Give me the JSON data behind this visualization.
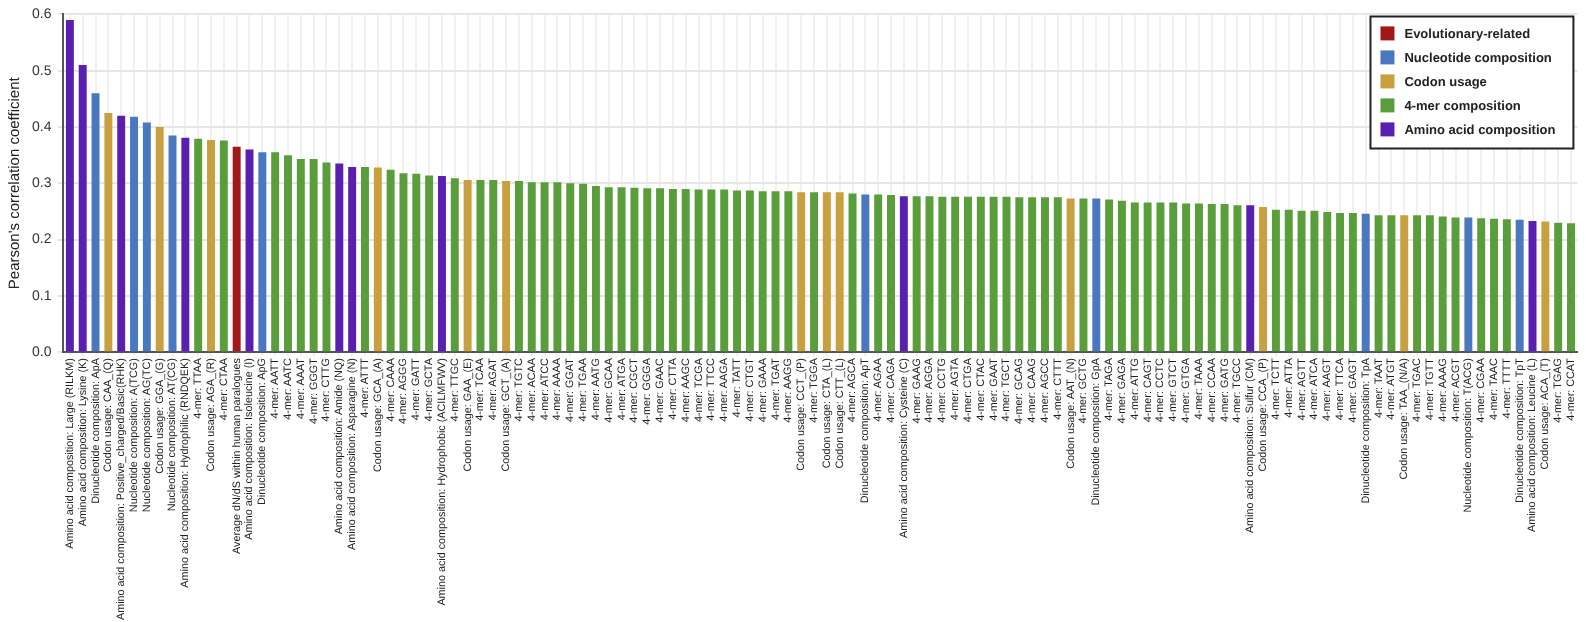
{
  "chart_data": {
    "type": "bar",
    "ylabel": "Pearson's correlation coefficient",
    "grid": true,
    "legend": "top right",
    "ylim": [
      0,
      0.6
    ],
    "yticks": [
      {
        "value": 0,
        "label": "0.0"
      },
      {
        "value": 0.1,
        "label": "0.1"
      },
      {
        "value": 0.2,
        "label": "0.2"
      },
      {
        "value": 0.3,
        "label": "0.3"
      },
      {
        "value": 0.4,
        "label": "0.4"
      },
      {
        "value": 0.5,
        "label": "0.5"
      },
      {
        "value": 0.6,
        "label": "0.6"
      }
    ],
    "categories": [
      "Amino acid composition: Large (RILKM)",
      "Amino acid composition: Lysine (K)",
      "Dinucleotide composition: ApA",
      "Codon usage: CAA_(Q)",
      "Amino acid composition: Positive_charged/Basic(RHK)",
      "Nucleotide composition: A(TCG)",
      "Nucleotide composition: AG(TC)",
      "Codon usage: GGA_(G)",
      "Nucleotide composition: AT(CG)",
      "Amino acid composition: Hydrophilic (RNDQEK)",
      "4-mer: TTAA",
      "Codon usage: AGA_(R)",
      "4-mer: CTAA",
      "Average dN/dS within human paralogues",
      "Amino acid composition: Isoleucine (I)",
      "Dinucleotide composition: ApG",
      "4-mer: AATT",
      "4-mer: AATC",
      "4-mer: AAAT",
      "4-mer: GGGT",
      "4-mer: CTTG",
      "Amino acid composition: Amide (NQ)",
      "Amino acid composition: Asparagine (N)",
      "4-mer: ATTT",
      "Codon usage: GCA_(A)",
      "4-mer: CAAA",
      "4-mer: AGGG",
      "4-mer: GATT",
      "4-mer: GCTA",
      "Amino acid composition: Hydrophobic (ACILMFWV)",
      "4-mer: TTGC",
      "Codon usage: GAA_(E)",
      "4-mer: TCAA",
      "4-mer: AGAT",
      "Codon usage: GCT_(A)",
      "4-mer: TGTC",
      "4-mer: ACAA",
      "4-mer: ATCC",
      "4-mer: AAAA",
      "4-mer: GGAT",
      "4-mer: TGAA",
      "4-mer: AATG",
      "4-mer: GCAA",
      "4-mer: ATGA",
      "4-mer: CGCT",
      "4-mer: GGGA",
      "4-mer: GAAC",
      "4-mer: CTTA",
      "4-mer: AAGC",
      "4-mer: TCGA",
      "4-mer: TTCC",
      "4-mer: AAGA",
      "4-mer: TATT",
      "4-mer: CTGT",
      "4-mer: GAAA",
      "4-mer: TGAT",
      "4-mer: AAGG",
      "Codon usage: CCT_(P)",
      "4-mer: TGGA",
      "Codon usage: CTA_(L)",
      "Codon usage: CTT_(L)",
      "4-mer: AGCA",
      "Dinucleotide composition: ApT",
      "4-mer: AGAA",
      "4-mer: CAGA",
      "Amino acid composition: Cysteine (C)",
      "4-mer: GAAG",
      "4-mer: AGGA",
      "4-mer: CCTG",
      "4-mer: AGTA",
      "4-mer: CTGA",
      "4-mer: CTAC",
      "4-mer: GAAT",
      "4-mer: TGCT",
      "4-mer: GCAG",
      "4-mer: CAAG",
      "4-mer: AGCC",
      "4-mer: CTTT",
      "Codon usage: AAT_(N)",
      "4-mer: GCTG",
      "Dinucleotide composition: GpA",
      "4-mer: TAGA",
      "4-mer: GAGA",
      "4-mer: ATTG",
      "4-mer: CAGT",
      "4-mer: CCTC",
      "4-mer: GTCT",
      "4-mer: GTGA",
      "4-mer: TAAA",
      "4-mer: CCAA",
      "4-mer: GATG",
      "4-mer: TGCC",
      "Amino acid composition: Sulfur (CM)",
      "Codon usage: CCA_(P)",
      "4-mer: TCTT",
      "4-mer: ATTA",
      "4-mer: AGTT",
      "4-mer: ATCA",
      "4-mer: AAGT",
      "4-mer: TTCA",
      "4-mer: GAGT",
      "Dinucleotide composition: TpA",
      "4-mer: TAAT",
      "4-mer: ATGT",
      "Codon usage: TAA_(N/A)",
      "4-mer: TGAC",
      "4-mer: TGTT",
      "4-mer: AAAG",
      "4-mer: ACGT",
      "Nucleotide composition: T(ACG)",
      "4-mer: CGAA",
      "4-mer: TAAC",
      "4-mer: TTTT",
      "Dinucleotide composition: TpT",
      "Amino acid composition: Leucine (L)",
      "Codon usage: ACA_(T)",
      "4-mer: TGAG",
      "4-mer: CCAT"
    ],
    "series": [
      {
        "name": "Evolutionary-related",
        "color": "#a01818",
        "values": [
          null,
          null,
          null,
          null,
          null,
          null,
          null,
          null,
          null,
          null,
          null,
          null,
          null,
          0.365,
          null,
          null,
          null,
          null,
          null,
          null,
          null,
          null,
          null,
          null,
          null,
          null,
          null,
          null,
          null,
          null,
          null,
          null,
          null,
          null,
          null,
          null,
          null,
          null,
          null,
          null,
          null,
          null,
          null,
          null,
          null,
          null,
          null,
          null,
          null,
          null,
          null,
          null,
          null,
          null,
          null,
          null,
          null,
          null,
          null,
          null,
          null,
          null,
          null,
          null,
          null,
          null,
          null,
          null,
          null,
          null,
          null,
          null,
          null,
          null,
          null,
          null,
          null,
          null,
          null,
          null,
          null,
          null,
          null,
          null,
          null,
          null,
          null,
          null,
          null,
          null,
          null,
          null,
          null,
          null,
          null,
          null,
          null,
          null,
          null,
          null,
          null,
          null,
          null,
          null,
          null,
          null,
          null,
          null,
          null,
          null,
          null,
          null,
          null,
          null,
          null,
          null,
          null,
          null
        ]
      },
      {
        "name": "Nucleotide composition",
        "color": "#4a78c0",
        "values": [
          null,
          null,
          0.46,
          null,
          null,
          0.418,
          0.408,
          null,
          0.385,
          null,
          null,
          null,
          null,
          null,
          null,
          0.355,
          null,
          null,
          null,
          null,
          null,
          null,
          null,
          null,
          null,
          null,
          null,
          null,
          null,
          null,
          null,
          null,
          null,
          null,
          null,
          null,
          null,
          null,
          null,
          null,
          null,
          null,
          null,
          null,
          null,
          null,
          null,
          null,
          null,
          null,
          null,
          null,
          null,
          null,
          null,
          null,
          null,
          null,
          null,
          null,
          null,
          null,
          0.28,
          null,
          null,
          null,
          null,
          null,
          null,
          null,
          null,
          null,
          null,
          null,
          null,
          null,
          null,
          null,
          null,
          null,
          0.273,
          null,
          null,
          null,
          null,
          null,
          null,
          null,
          null,
          null,
          null,
          null,
          null,
          null,
          null,
          null,
          null,
          null,
          null,
          null,
          null,
          0.246,
          null,
          null,
          null,
          null,
          null,
          null,
          null,
          0.239,
          null,
          null,
          null,
          0.235,
          null,
          null,
          null,
          null
        ]
      },
      {
        "name": "Codon usage",
        "color": "#c9a040",
        "values": [
          null,
          null,
          null,
          0.425,
          null,
          null,
          null,
          0.4,
          null,
          null,
          null,
          0.377,
          null,
          null,
          null,
          null,
          null,
          null,
          null,
          null,
          null,
          null,
          null,
          null,
          0.328,
          null,
          null,
          null,
          null,
          null,
          null,
          0.306,
          null,
          null,
          0.304,
          null,
          null,
          null,
          null,
          null,
          null,
          null,
          null,
          null,
          null,
          null,
          null,
          null,
          null,
          null,
          null,
          null,
          null,
          null,
          null,
          null,
          null,
          0.284,
          null,
          0.284,
          0.284,
          null,
          null,
          null,
          null,
          null,
          null,
          null,
          null,
          null,
          null,
          null,
          null,
          null,
          null,
          null,
          null,
          null,
          0.273,
          null,
          null,
          null,
          null,
          null,
          null,
          null,
          null,
          null,
          null,
          null,
          null,
          null,
          null,
          0.258,
          null,
          null,
          null,
          null,
          null,
          null,
          null,
          null,
          null,
          null,
          0.243,
          null,
          null,
          null,
          null,
          null,
          null,
          null,
          null,
          null,
          null,
          0.232,
          null,
          null
        ]
      },
      {
        "name": "4-mer composition",
        "color": "#5a9e3c",
        "values": [
          null,
          null,
          null,
          null,
          null,
          null,
          null,
          null,
          null,
          null,
          0.379,
          null,
          0.376,
          null,
          null,
          null,
          0.355,
          0.35,
          0.343,
          0.343,
          0.337,
          null,
          null,
          0.329,
          null,
          0.324,
          0.318,
          0.317,
          0.314,
          null,
          0.309,
          null,
          0.306,
          0.306,
          null,
          0.304,
          0.302,
          0.302,
          0.302,
          0.3,
          0.299,
          0.295,
          0.293,
          0.293,
          0.292,
          0.291,
          0.291,
          0.29,
          0.29,
          0.289,
          0.289,
          0.289,
          0.287,
          0.287,
          0.286,
          0.286,
          0.286,
          null,
          0.284,
          null,
          null,
          0.282,
          null,
          0.28,
          0.279,
          null,
          0.277,
          0.277,
          0.276,
          0.276,
          0.276,
          0.276,
          0.276,
          0.276,
          0.275,
          0.275,
          0.275,
          0.275,
          null,
          0.273,
          null,
          0.271,
          0.269,
          0.266,
          0.266,
          0.266,
          0.266,
          0.264,
          0.264,
          0.263,
          0.263,
          0.261,
          null,
          null,
          0.253,
          0.253,
          0.251,
          0.251,
          0.249,
          0.247,
          0.247,
          null,
          0.243,
          0.243,
          null,
          0.243,
          0.243,
          0.241,
          0.239,
          null,
          0.238,
          0.237,
          0.236,
          null,
          null,
          null,
          0.23,
          0.229
        ]
      },
      {
        "name": "Amino acid composition",
        "color": "#5a1fb0",
        "values": [
          0.59,
          0.51,
          null,
          null,
          0.42,
          null,
          null,
          null,
          null,
          0.381,
          null,
          null,
          null,
          null,
          0.36,
          null,
          null,
          null,
          null,
          null,
          null,
          0.335,
          0.329,
          null,
          null,
          null,
          null,
          null,
          null,
          0.313,
          null,
          null,
          null,
          null,
          null,
          null,
          null,
          null,
          null,
          null,
          null,
          null,
          null,
          null,
          null,
          null,
          null,
          null,
          null,
          null,
          null,
          null,
          null,
          null,
          null,
          null,
          null,
          null,
          null,
          null,
          null,
          null,
          null,
          null,
          null,
          0.277,
          null,
          null,
          null,
          null,
          null,
          null,
          null,
          null,
          null,
          null,
          null,
          null,
          null,
          null,
          null,
          null,
          null,
          null,
          null,
          null,
          null,
          null,
          null,
          null,
          null,
          null,
          0.261,
          null,
          null,
          null,
          null,
          null,
          null,
          null,
          null,
          null,
          null,
          null,
          null,
          null,
          null,
          null,
          null,
          null,
          null,
          null,
          null,
          null,
          0.233,
          null,
          null,
          null
        ]
      }
    ]
  }
}
